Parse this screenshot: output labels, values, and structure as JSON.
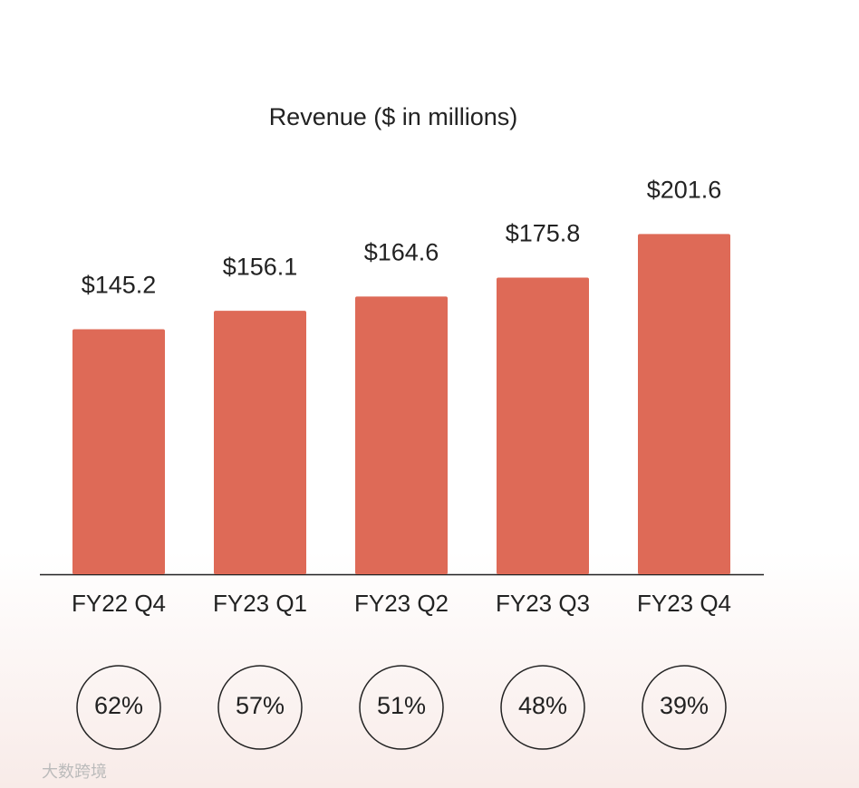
{
  "chart_data": {
    "type": "bar",
    "title": "Revenue ($ in millions)",
    "categories": [
      "FY22 Q4",
      "FY23 Q1",
      "FY23 Q2",
      "FY23 Q3",
      "FY23 Q4"
    ],
    "values": [
      145.2,
      156.1,
      164.6,
      175.8,
      201.6
    ],
    "value_labels": [
      "$145.2",
      "$156.1",
      "$164.6",
      "$175.8",
      "$201.6"
    ],
    "color": "#de6a57",
    "circle_values": [
      62,
      57,
      51,
      48,
      39
    ],
    "circle_labels": [
      "62%",
      "57%",
      "51%",
      "48%",
      "39%"
    ]
  },
  "watermark": "大数跨境"
}
